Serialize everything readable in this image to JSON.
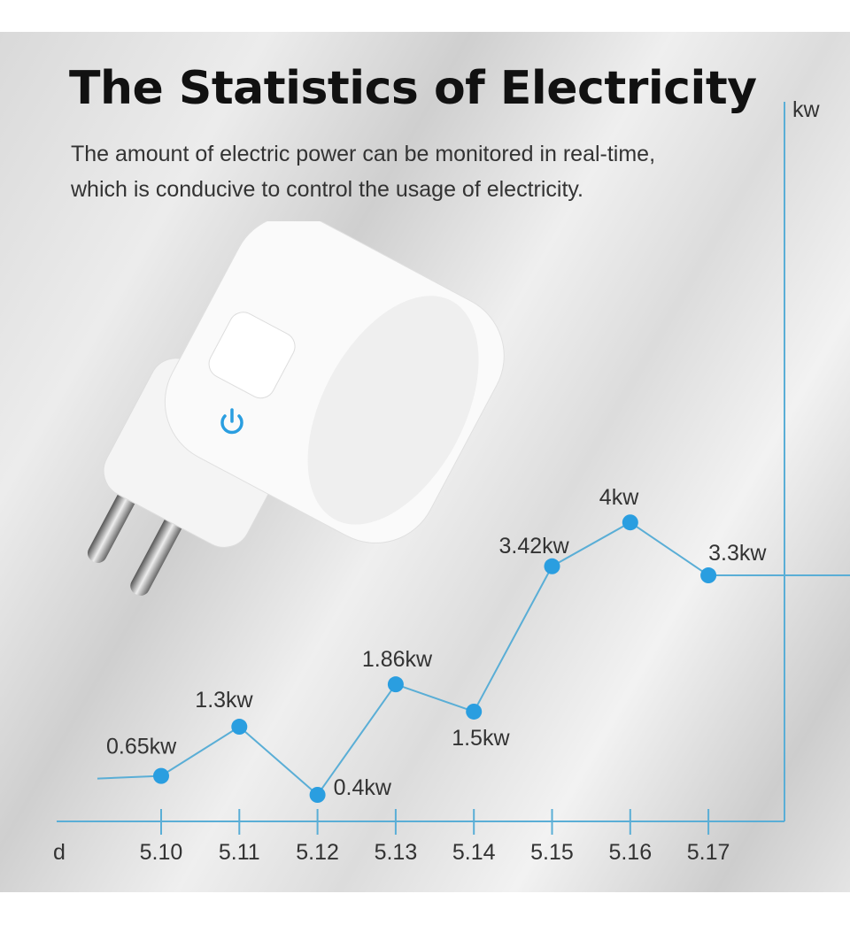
{
  "title": "The Statistics of Electricity",
  "subtitle": [
    "The amount of electric power can be monitored in real-time,",
    "which is conducive to control the usage of electricity."
  ],
  "colors": {
    "accent": "#2a9ee0",
    "axis": "#5aaed6"
  },
  "chart_data": {
    "type": "line",
    "xlabel": "d",
    "ylabel": "kw",
    "categories": [
      "5.10",
      "5.11",
      "5.12",
      "5.13",
      "5.14",
      "5.15",
      "5.16",
      "5.17"
    ],
    "values": [
      0.65,
      1.3,
      0.4,
      1.86,
      1.5,
      3.42,
      4,
      3.3
    ],
    "data_labels": [
      "0.65kw",
      "1.3kw",
      "0.4kw",
      "1.86kw",
      "1.5kw",
      "3.42kw",
      "4kw",
      "3.3kw"
    ],
    "grid": false
  },
  "product": {
    "icon": "power-icon"
  }
}
